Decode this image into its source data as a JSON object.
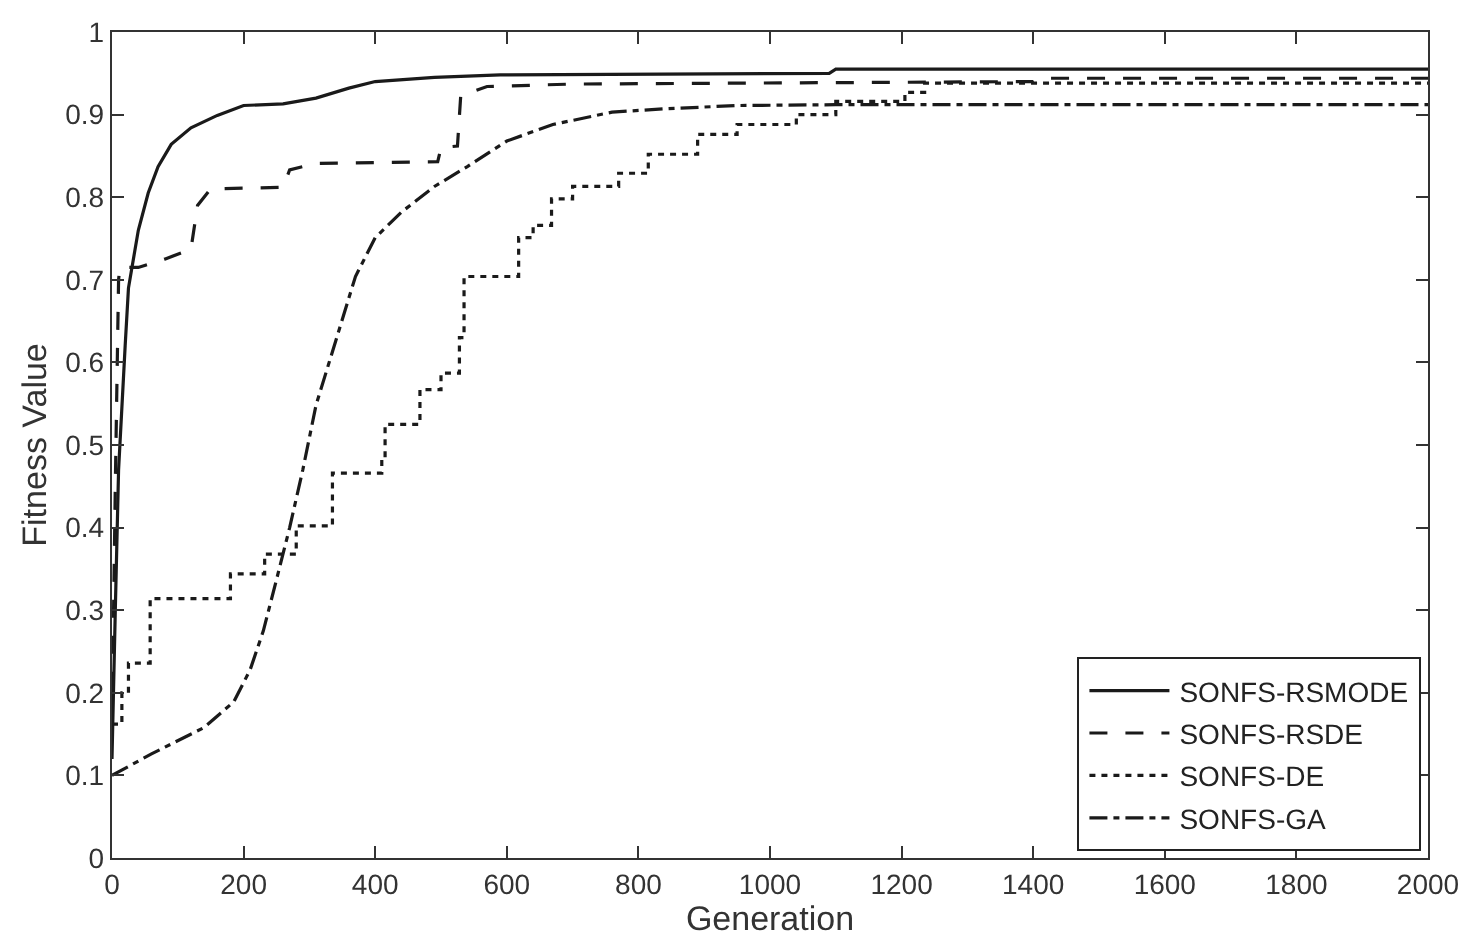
{
  "chart_data": {
    "type": "line",
    "xlabel": "Generation",
    "ylabel": "Fitness Value",
    "xlim": [
      0,
      2000
    ],
    "xticks": [
      0,
      200,
      400,
      600,
      800,
      1000,
      1200,
      1400,
      1600,
      1800,
      2000
    ],
    "ylim": [
      0,
      1
    ],
    "yticks": [
      0,
      0.1,
      0.2,
      0.3,
      0.4,
      0.5,
      0.6,
      0.7,
      0.8,
      0.9,
      1
    ],
    "legend": "bottom right",
    "series": [
      {
        "name": "SONFS-RSMODE",
        "color": "#1a1a1a",
        "line_style": "solid",
        "x": [
          0,
          5,
          10,
          20,
          25,
          40,
          55,
          70,
          90,
          120,
          160,
          200,
          260,
          310,
          360,
          400,
          490,
          590,
          1090,
          1100,
          2000
        ],
        "values": [
          0.12,
          0.3,
          0.47,
          0.62,
          0.69,
          0.76,
          0.805,
          0.837,
          0.864,
          0.884,
          0.899,
          0.911,
          0.913,
          0.92,
          0.932,
          0.94,
          0.945,
          0.948,
          0.95,
          0.955,
          0.955
        ]
      },
      {
        "name": "SONFS-RSDE",
        "color": "#1a1a1a",
        "line_style": "dashed",
        "x": [
          0,
          5,
          10,
          12,
          40,
          80,
          120,
          130,
          150,
          260,
          270,
          310,
          495,
          500,
          525,
          530,
          570,
          700,
          1400,
          1410,
          2000
        ],
        "values": [
          0.16,
          0.45,
          0.7,
          0.715,
          0.715,
          0.725,
          0.737,
          0.79,
          0.81,
          0.812,
          0.833,
          0.841,
          0.843,
          0.86,
          0.862,
          0.923,
          0.934,
          0.937,
          0.94,
          0.944,
          0.944
        ]
      },
      {
        "name": "SONFS-DE",
        "color": "#1a1a1a",
        "line_style": "dotted",
        "type": "step",
        "x": [
          0,
          15,
          25,
          58,
          180,
          232,
          280,
          335,
          410,
          415,
          468,
          500,
          528,
          535,
          618,
          640,
          668,
          700,
          770,
          815,
          890,
          950,
          1040,
          1100,
          1205,
          1235,
          2000
        ],
        "values": [
          0.162,
          0.2,
          0.236,
          0.314,
          0.344,
          0.368,
          0.402,
          0.466,
          0.485,
          0.525,
          0.567,
          0.587,
          0.63,
          0.704,
          0.751,
          0.766,
          0.798,
          0.813,
          0.829,
          0.852,
          0.876,
          0.888,
          0.9,
          0.916,
          0.927,
          0.938,
          0.938
        ]
      },
      {
        "name": "SONFS-GA",
        "color": "#1a1a1a",
        "line_style": "dashdot",
        "x": [
          0,
          60,
          140,
          185,
          210,
          230,
          250,
          270,
          290,
          310,
          340,
          370,
          400,
          440,
          490,
          540,
          600,
          670,
          760,
          840,
          950,
          1100,
          2000
        ],
        "values": [
          0.1,
          0.126,
          0.158,
          0.189,
          0.228,
          0.275,
          0.337,
          0.4,
          0.47,
          0.548,
          0.626,
          0.704,
          0.751,
          0.782,
          0.813,
          0.837,
          0.868,
          0.888,
          0.903,
          0.907,
          0.911,
          0.912,
          0.912
        ]
      }
    ]
  }
}
